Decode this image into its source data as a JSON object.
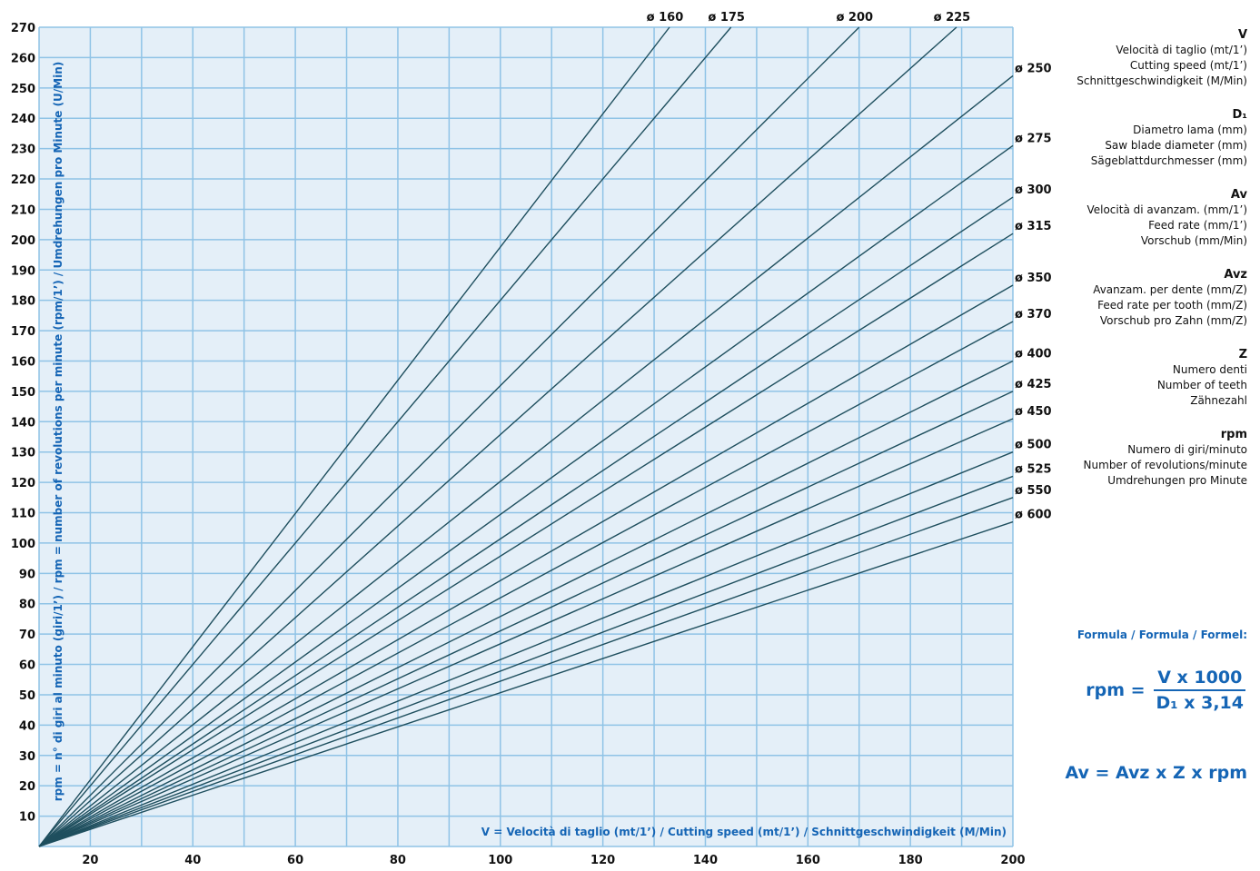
{
  "chart_data": {
    "type": "line",
    "xlabel": "V = Velocità di taglio (mt/1’) / Cutting speed (mt/1’) / Schnittgeschwindigkeit (M/Min)",
    "ylabel": "rpm = n° di giri al minuto (giri/1’) / rpm = number of revolutions per minute (rpm/1’) / Umdrehungen pro Minute (U/Min)",
    "xlim": [
      10,
      200
    ],
    "ylim": [
      0,
      270
    ],
    "x_ticks": [
      "20",
      "40",
      "60",
      "80",
      "100",
      "120",
      "140",
      "160",
      "180",
      "200"
    ],
    "y_ticks": [
      "10",
      "20",
      "30",
      "40",
      "50",
      "60",
      "70",
      "80",
      "90",
      "100",
      "110",
      "120",
      "130",
      "140",
      "150",
      "160",
      "170",
      "180",
      "190",
      "200",
      "210",
      "220",
      "230",
      "240",
      "250",
      "260",
      "270"
    ],
    "grid": true,
    "series": [
      {
        "name": "ø 160",
        "x": [
          10,
          133
        ],
        "y": [
          0,
          270
        ]
      },
      {
        "name": "ø 175",
        "x": [
          10,
          145
        ],
        "y": [
          0,
          270
        ]
      },
      {
        "name": "ø 200",
        "x": [
          10,
          170
        ],
        "y": [
          0,
          270
        ]
      },
      {
        "name": "ø 225",
        "x": [
          10,
          189
        ],
        "y": [
          0,
          270
        ]
      },
      {
        "name": "ø 250",
        "x": [
          10,
          200
        ],
        "y": [
          0,
          254
        ]
      },
      {
        "name": "ø 275",
        "x": [
          10,
          200
        ],
        "y": [
          0,
          231
        ]
      },
      {
        "name": "ø 300",
        "x": [
          10,
          200
        ],
        "y": [
          0,
          214
        ]
      },
      {
        "name": "ø 315",
        "x": [
          10,
          200
        ],
        "y": [
          0,
          202
        ]
      },
      {
        "name": "ø 350",
        "x": [
          10,
          200
        ],
        "y": [
          0,
          185
        ]
      },
      {
        "name": "ø 370",
        "x": [
          10,
          200
        ],
        "y": [
          0,
          173
        ]
      },
      {
        "name": "ø 400",
        "x": [
          10,
          200
        ],
        "y": [
          0,
          160
        ]
      },
      {
        "name": "ø 425",
        "x": [
          10,
          200
        ],
        "y": [
          0,
          150
        ]
      },
      {
        "name": "ø 450",
        "x": [
          10,
          200
        ],
        "y": [
          0,
          141
        ]
      },
      {
        "name": "ø 500",
        "x": [
          10,
          200
        ],
        "y": [
          0,
          130
        ]
      },
      {
        "name": "ø 525",
        "x": [
          10,
          200
        ],
        "y": [
          0,
          122
        ]
      },
      {
        "name": "ø 550",
        "x": [
          10,
          200
        ],
        "y": [
          0,
          115
        ]
      },
      {
        "name": "ø 600",
        "x": [
          10,
          200
        ],
        "y": [
          0,
          107
        ]
      }
    ],
    "colors": {
      "line": "#1f4f5e",
      "grid": "#8fc3e6",
      "plot_bg": "#e4eff8",
      "accent": "#1565b5"
    }
  },
  "legend": [
    {
      "symbol": "V",
      "lines": [
        "Velocità di taglio (mt/1’)",
        "Cutting speed (mt/1’)",
        "Schnittgeschwindigkeit (M/Min)"
      ]
    },
    {
      "symbol": "D₁",
      "lines": [
        "Diametro lama (mm)",
        "Saw blade diameter (mm)",
        "Sägeblattdurchmesser (mm)"
      ]
    },
    {
      "symbol": "Av",
      "lines": [
        "Velocità di avanzam. (mm/1’)",
        "Feed rate (mm/1’)",
        "Vorschub (mm/Min)"
      ]
    },
    {
      "symbol": "Avz",
      "lines": [
        "Avanzam. per dente (mm/Z)",
        "Feed rate per tooth (mm/Z)",
        "Vorschub pro Zahn (mm/Z)"
      ]
    },
    {
      "symbol": "Z",
      "lines": [
        "Numero denti",
        "Number of teeth",
        "Zähnezahl"
      ]
    },
    {
      "symbol": "rpm",
      "lines": [
        "Numero di giri/minuto",
        "Number of revolutions/minute",
        "Umdrehungen pro Minute"
      ]
    }
  ],
  "formula": {
    "title": "Formula / Formula / Formel:",
    "rpm_lhs": "rpm =",
    "rpm_numerator": "V x 1000",
    "rpm_denominator": "D₁ x 3,14",
    "av": "Av = Avz x Z x rpm"
  }
}
